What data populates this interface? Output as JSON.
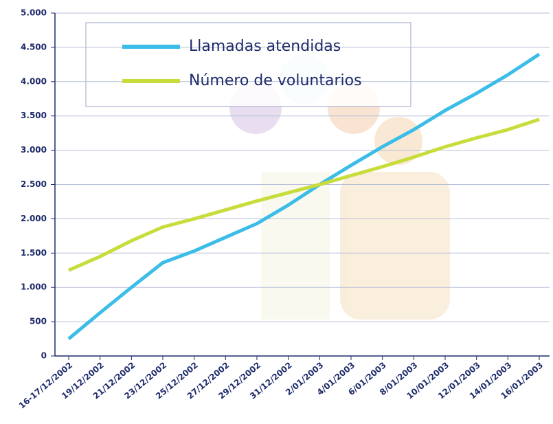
{
  "chart_data": {
    "type": "line",
    "categories": [
      "16-17/12/2002",
      "19/12/2002",
      "21/12/2002",
      "23/12/2002",
      "25/12/2002",
      "27/12/2002",
      "29/12/2002",
      "31/12/2002",
      "2/01/2003",
      "4/01/2003",
      "6/01/2003",
      "8/01/2003",
      "10/01/2003",
      "12/01/2003",
      "14/01/2003",
      "16/01/2003"
    ],
    "series": [
      {
        "name": "Llamadas atendidas",
        "color": "#3bbde8",
        "values": [
          250,
          630,
          1000,
          1360,
          1530,
          1730,
          1930,
          2200,
          2500,
          2780,
          3050,
          3300,
          3580,
          3830,
          4100,
          4400
        ]
      },
      {
        "name": "Número de voluntarios",
        "color": "#c8dc3c",
        "values": [
          1250,
          1450,
          1680,
          1880,
          2000,
          2130,
          2260,
          2380,
          2500,
          2630,
          2760,
          2900,
          3050,
          3180,
          3300,
          3450
        ]
      }
    ],
    "ylim": [
      0,
      5000
    ],
    "yticks": [
      0,
      500,
      {
        "value": 1000,
        "label": "1.000"
      },
      {
        "value": 1500,
        "label": "1.500"
      },
      {
        "value": 2000,
        "label": "2.000"
      },
      {
        "value": 2500,
        "label": "2.500"
      },
      {
        "value": 3000,
        "label": "3.000"
      },
      {
        "value": 3500,
        "label": "3.500"
      },
      {
        "value": 4000,
        "label": "4.000"
      },
      {
        "value": 4500,
        "label": "4.500"
      },
      {
        "value": 5000,
        "label": "5.000"
      }
    ],
    "grid": true
  }
}
